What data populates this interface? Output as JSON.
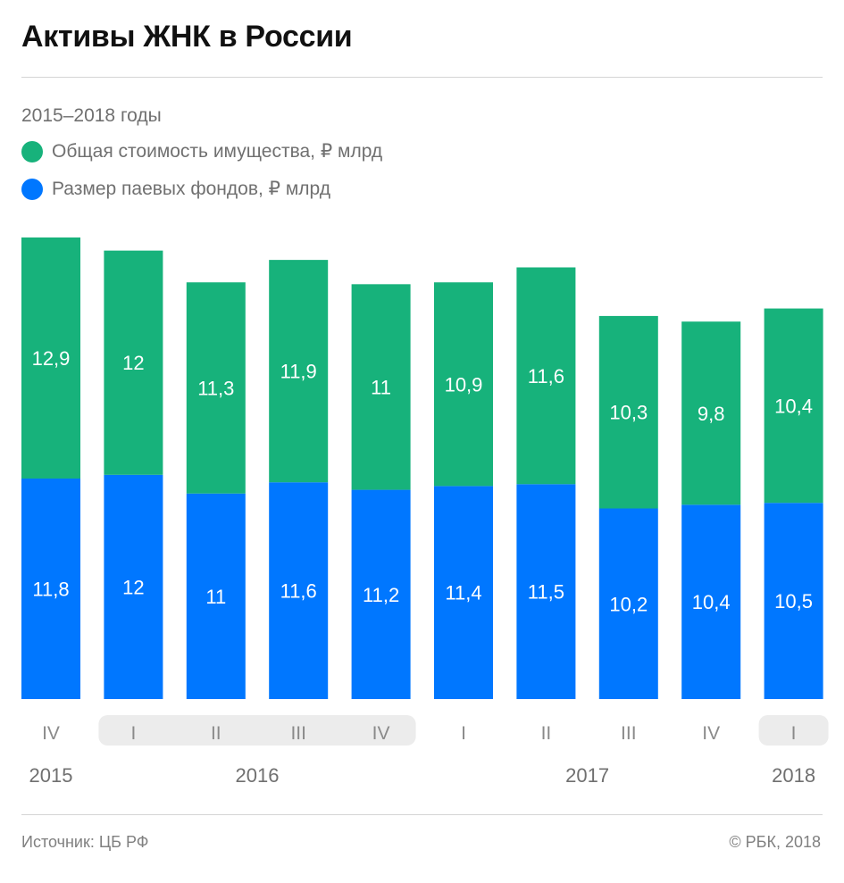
{
  "header": {
    "title": "Активы ЖНК в России",
    "subtitle": "2015–2018 годы"
  },
  "legend": [
    {
      "label": "Общая стоимость имущества, ₽ млрд",
      "color": "#17b27b"
    },
    {
      "label": "Размер паевых фондов, ₽ млрд",
      "color": "#0077ff"
    }
  ],
  "chart_data": {
    "type": "bar",
    "stacked": true,
    "categories": [
      "IV",
      "I",
      "II",
      "III",
      "IV",
      "I",
      "II",
      "III",
      "IV",
      "I"
    ],
    "year_labels": [
      "2015",
      "2016",
      "2017",
      "2018"
    ],
    "year_groups": [
      {
        "year": "2015",
        "start": 0,
        "end": 0,
        "highlight": false
      },
      {
        "year": "2016",
        "start": 1,
        "end": 4,
        "highlight": true
      },
      {
        "year": "2017",
        "start": 5,
        "end": 8,
        "highlight": false
      },
      {
        "year": "2018",
        "start": 9,
        "end": 9,
        "highlight": true
      }
    ],
    "series": [
      {
        "name": "Размер паевых фондов, ₽ млрд",
        "color": "#0077ff",
        "values": [
          11.8,
          12,
          11,
          11.6,
          11.2,
          11.4,
          11.5,
          10.2,
          10.4,
          10.5
        ],
        "labels": [
          "11,8",
          "12",
          "11",
          "11,6",
          "11,2",
          "11,4",
          "11,5",
          "10,2",
          "10,4",
          "10,5"
        ]
      },
      {
        "name": "Общая стоимость имущества, ₽ млрд",
        "color": "#17b27b",
        "values": [
          12.9,
          12,
          11.3,
          11.9,
          11,
          10.9,
          11.6,
          10.3,
          9.8,
          10.4
        ],
        "labels": [
          "12,9",
          "12",
          "11,3",
          "11,9",
          "11",
          "10,9",
          "11,6",
          "10,3",
          "9,8",
          "10,4"
        ]
      }
    ],
    "ylim": [
      0,
      24.7
    ],
    "grid": false,
    "highlight_color": "#ececec"
  },
  "footer": {
    "source": "Источник: ЦБ РФ",
    "copyright": "© РБК, 2018"
  }
}
